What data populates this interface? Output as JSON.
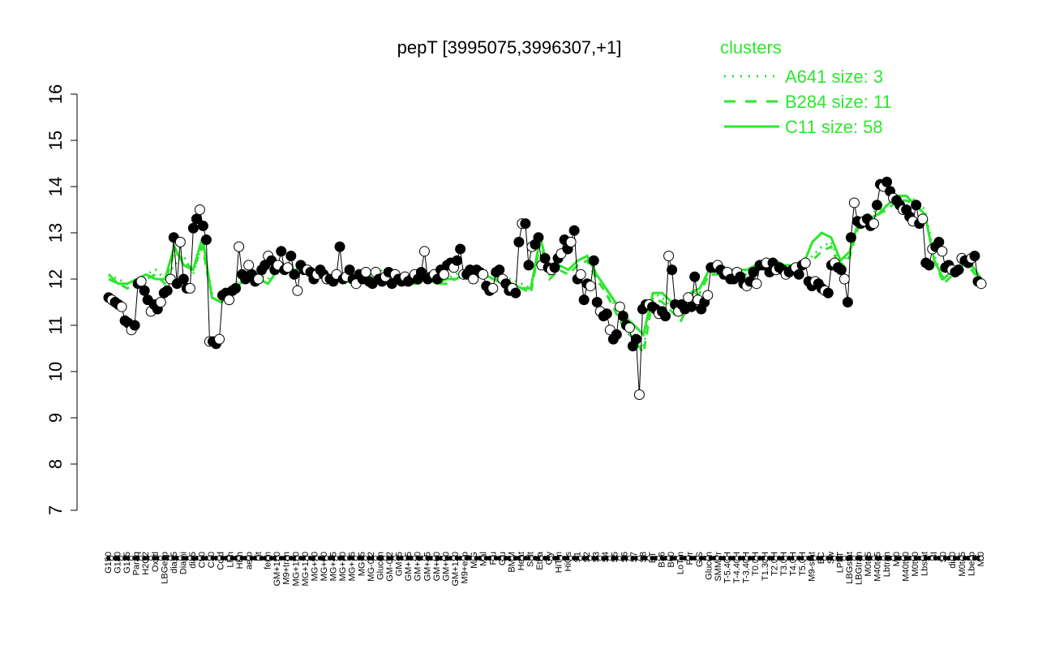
{
  "chart_data": {
    "type": "line",
    "title": "pepT [3995075,3996307,+1]",
    "xlabel": "",
    "ylabel": "",
    "ylim": [
      7,
      16
    ],
    "yticks": [
      7,
      8,
      9,
      10,
      11,
      12,
      13,
      14,
      15,
      16
    ],
    "grid": false,
    "legend": {
      "placement": "top-right",
      "title": "clusters",
      "color": "#2ee62e",
      "entries": [
        {
          "label": "A641 size: 3",
          "style": "dotted"
        },
        {
          "label": "B284 size: 11",
          "style": "dashed"
        },
        {
          "label": "C11 size: 58",
          "style": "solid"
        }
      ]
    },
    "x_tick_labels": [
      "G150",
      "G180",
      "G135",
      "Paraq",
      "H2O2",
      "Oxctl",
      "LBGexp",
      "dia15",
      "Diami",
      "dia5",
      "C90",
      "C30",
      "Cold",
      "LPh",
      "HPh",
      "aero",
      "nit",
      "ferm",
      "GM+150",
      "M9+tran",
      "MG+150",
      "MG+120",
      "MG+90",
      "MG+60",
      "MG+45",
      "MG+30",
      "MG+15",
      "MG+5",
      "MG-0.2",
      "Glucon",
      "GM-0.2",
      "GM+5",
      "GM+15",
      "GM+30",
      "GM+45",
      "GM+60",
      "GM+90",
      "GM+120",
      "M9+exp",
      "M/G",
      "Mal",
      "Fru",
      "Glu",
      "BMM",
      "Heat",
      "Salt",
      "Etha",
      "Gly",
      "HiTm",
      "HiOs",
      "S1",
      "S2",
      "S3",
      "S4",
      "S5",
      "S6",
      "S7",
      "S8",
      "BT",
      "B36",
      "B60",
      "LoTm",
      "Pyr",
      "G/S",
      "Glucon",
      "SMMPr",
      "T-5.40H",
      "T-4.40H",
      "T-3.40H",
      "T0.0H",
      "T1.30H",
      "T2.0H",
      "T3.0H",
      "T4.0H",
      "T5.0H",
      "M9-stat",
      "BC",
      "Sw",
      "LPhT",
      "LBGstat",
      "LBGtran",
      "M0t45",
      "M40t45",
      "Lbtran",
      "Mt0",
      "M40t90",
      "M0t90",
      "Lbstat",
      "BI",
      "S0",
      "dia0",
      "M0t45",
      "Lbexp",
      "Mt0"
    ],
    "series_points": {
      "name": "expression",
      "values": [
        11.6,
        11.55,
        11.5,
        11.45,
        11.4,
        11.1,
        11.05,
        10.9,
        11.0,
        11.9,
        11.95,
        11.75,
        11.55,
        11.3,
        11.45,
        11.35,
        11.5,
        11.7,
        11.75,
        12.0,
        12.9,
        11.9,
        12.8,
        12.0,
        11.8,
        11.8,
        13.1,
        13.3,
        13.5,
        13.15,
        12.85,
        10.65,
        10.65,
        10.6,
        10.7,
        11.65,
        11.7,
        11.55,
        11.75,
        11.8,
        12.7,
        12.1,
        12.0,
        12.3,
        12.1,
        11.95,
        12.0,
        12.2,
        12.3,
        12.5,
        12.4,
        12.2,
        12.3,
        12.6,
        12.2,
        12.25,
        12.5,
        12.1,
        11.75,
        12.3,
        12.2,
        12.2,
        12.15,
        12.0,
        12.1,
        12.2,
        12.1,
        12.0,
        12.0,
        11.95,
        12.1,
        12.7,
        12.0,
        12.05,
        12.2,
        12.0,
        11.9,
        12.1,
        12.0,
        12.15,
        11.95,
        11.9,
        12.15,
        12.0,
        11.95,
        12.05,
        12.15,
        11.9,
        12.1,
        12.0,
        11.95,
        12.05,
        11.95,
        12.0,
        12.1,
        12.0,
        12.15,
        12.6,
        12.0,
        12.05,
        12.1,
        12.0,
        12.2,
        12.1,
        12.3,
        12.35,
        12.25,
        12.4,
        12.65,
        12.1,
        12.1,
        12.2,
        12.0,
        12.2,
        12.15,
        12.1,
        11.85,
        11.75,
        11.8,
        12.15,
        12.2,
        12.0,
        11.9,
        11.75,
        11.8,
        11.7,
        12.8,
        13.2,
        13.2,
        12.3,
        12.7,
        12.75,
        12.9,
        12.3,
        12.45,
        12.25,
        12.2,
        12.25,
        12.45,
        12.55,
        12.85,
        12.65,
        12.8,
        13.05,
        12.0,
        12.1,
        11.55,
        11.9,
        11.85,
        12.4,
        11.5,
        11.3,
        11.2,
        11.25,
        10.9,
        10.7,
        10.8,
        11.4,
        11.2,
        11.0,
        10.95,
        10.55,
        10.7,
        9.5,
        11.35,
        11.45,
        11.45,
        11.4,
        11.35,
        11.25,
        11.3,
        11.2,
        12.5,
        12.2,
        11.45,
        11.3,
        11.45,
        11.35,
        11.6,
        11.4,
        12.05,
        11.55,
        11.35,
        11.5,
        11.65,
        12.25,
        12.25,
        12.3,
        12.2,
        12.1,
        12.15,
        12.0,
        12.0,
        12.15,
        12.05,
        11.9,
        11.85,
        11.95,
        12.15,
        11.9,
        12.3,
        12.3,
        12.35,
        12.15,
        12.35,
        12.2,
        12.25,
        12.2,
        12.1,
        12.15,
        12.2,
        12.25,
        12.1,
        12.3,
        12.35,
        11.95,
        11.85,
        11.95,
        11.9,
        11.8,
        11.75,
        11.7,
        12.3,
        12.35,
        12.25,
        12.2,
        12.0,
        11.5,
        12.9,
        13.65,
        13.25,
        13.2,
        13.25,
        13.3,
        13.15,
        13.2,
        13.6,
        14.05,
        14.0,
        14.1,
        13.9,
        13.75,
        13.7,
        13.6,
        13.5,
        13.5,
        13.35,
        13.25,
        13.6,
        13.2,
        13.3,
        12.35,
        12.3,
        12.65,
        12.7,
        12.8,
        12.6,
        12.25,
        12.3,
        12.2,
        12.15,
        12.2,
        12.45,
        12.4,
        12.35,
        12.45,
        12.5,
        11.95,
        11.9
      ]
    },
    "cluster_lines": [
      {
        "name": "A641 size: 3",
        "style": "dotted",
        "values": [
          12.1,
          12.0,
          11.9,
          12.0,
          12.1,
          12.2,
          12.0,
          12.3,
          12.5,
          12.1,
          12.8,
          11.7,
          11.6,
          11.8,
          12.0,
          12.2,
          12.1,
          12.0,
          12.3,
          12.2,
          12.2,
          12.3,
          12.2,
          12.1,
          12.0,
          12.1,
          12.0,
          12.0,
          12.1,
          12.2,
          12.0,
          12.1,
          12.0,
          12.0,
          12.1,
          12.0,
          12.0,
          12.1,
          12.2,
          12.1,
          12.2,
          12.1,
          12.0,
          12.0,
          11.9,
          11.8,
          12.9,
          12.1,
          12.3,
          12.2,
          12.4,
          12.5,
          12.1,
          11.8,
          11.4,
          11.0,
          10.8,
          10.5,
          11.7,
          11.6,
          11.4,
          11.2,
          11.6,
          11.8,
          12.2,
          12.2,
          12.1,
          12.2,
          12.2,
          12.3,
          12.3,
          12.4,
          12.2,
          12.3,
          12.3,
          12.5,
          12.7,
          12.8,
          12.3,
          12.6,
          13.3,
          13.4,
          13.5,
          13.6,
          13.8,
          13.8,
          13.7,
          13.5,
          12.5,
          12.0,
          12.2,
          12.3,
          12.3,
          12.0
        ]
      },
      {
        "name": "B284 size: 11",
        "style": "dashed",
        "values": [
          12.0,
          11.9,
          11.8,
          11.9,
          12.0,
          12.1,
          11.9,
          12.6,
          12.4,
          12.2,
          12.7,
          11.6,
          11.5,
          11.7,
          11.9,
          12.1,
          12.0,
          11.9,
          12.2,
          12.1,
          12.1,
          12.2,
          12.1,
          12.0,
          12.0,
          12.0,
          11.9,
          12.0,
          12.0,
          12.1,
          11.9,
          12.0,
          11.9,
          11.9,
          12.0,
          11.9,
          11.9,
          12.0,
          12.1,
          12.0,
          12.1,
          12.0,
          11.9,
          11.9,
          11.8,
          11.7,
          12.8,
          12.0,
          12.2,
          12.1,
          12.3,
          12.4,
          12.0,
          11.7,
          11.3,
          10.9,
          10.7,
          10.4,
          11.6,
          11.5,
          11.3,
          11.1,
          11.5,
          11.7,
          12.1,
          12.1,
          12.0,
          12.1,
          12.1,
          12.2,
          12.2,
          12.3,
          12.1,
          12.2,
          12.2,
          12.4,
          12.6,
          12.7,
          12.2,
          12.5,
          13.2,
          13.3,
          13.4,
          13.5,
          13.7,
          13.7,
          13.6,
          13.4,
          12.4,
          11.9,
          12.1,
          12.2,
          12.2,
          11.9
        ]
      },
      {
        "name": "C11 size: 58",
        "style": "solid",
        "values": [
          12.1,
          11.9,
          11.9,
          12.0,
          12.1,
          12.0,
          12.0,
          12.7,
          12.3,
          12.2,
          12.9,
          11.6,
          11.5,
          11.7,
          11.9,
          12.1,
          12.0,
          11.9,
          12.2,
          12.2,
          12.2,
          12.2,
          12.1,
          12.1,
          12.0,
          12.0,
          12.0,
          12.0,
          12.0,
          12.1,
          12.0,
          12.0,
          11.9,
          12.0,
          12.0,
          11.9,
          12.0,
          12.0,
          12.1,
          12.0,
          12.1,
          12.0,
          12.0,
          11.9,
          11.8,
          11.8,
          12.9,
          12.1,
          12.3,
          12.2,
          12.4,
          12.5,
          12.1,
          11.8,
          11.5,
          11.2,
          11.0,
          10.8,
          11.7,
          11.7,
          11.5,
          11.3,
          11.7,
          11.8,
          12.2,
          12.3,
          12.2,
          12.2,
          12.2,
          12.3,
          12.4,
          12.4,
          12.3,
          12.3,
          12.3,
          12.8,
          13.0,
          12.9,
          12.4,
          12.6,
          13.3,
          13.3,
          13.4,
          13.6,
          13.8,
          13.8,
          13.6,
          13.4,
          12.4,
          12.0,
          12.2,
          12.3,
          12.3,
          12.0
        ]
      }
    ]
  }
}
